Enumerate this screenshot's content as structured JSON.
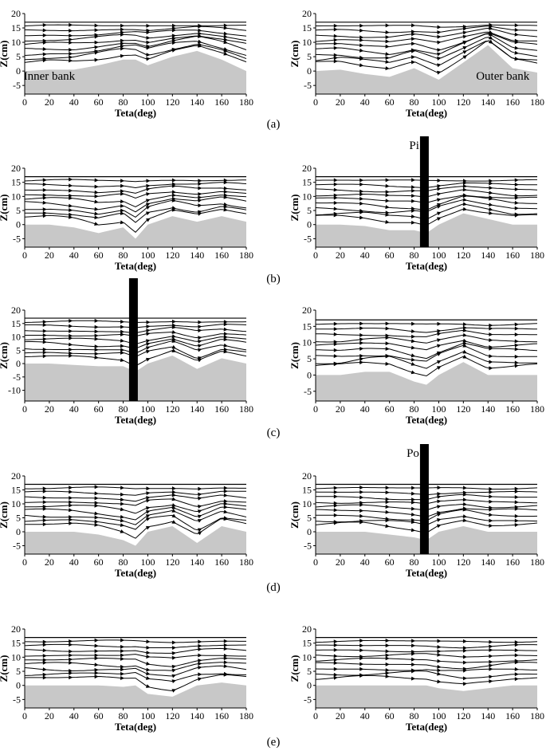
{
  "figure": {
    "panel_labels": [
      "(a)",
      "(b)",
      "(c)",
      "(d)",
      "(e)"
    ],
    "axis_color": "#000000",
    "bed_color": "#c8c8c8",
    "stream_color": "#000000"
  },
  "chart_data": [
    {
      "type": "streamline",
      "panel": "(a)",
      "side": "left",
      "xlabel": "Teta(deg)",
      "ylabel": "Z(cm)",
      "xlim": [
        0,
        180
      ],
      "ylim": [
        -8,
        20
      ],
      "xticks": [
        0,
        20,
        40,
        60,
        80,
        100,
        120,
        140,
        160,
        180
      ],
      "yticks": [
        -5,
        0,
        5,
        10,
        15,
        20
      ],
      "water_surface": 17,
      "annotations": [
        {
          "text": "Inner bank",
          "x": 20,
          "y": -3
        }
      ],
      "bed_profile": {
        "x": [
          0,
          20,
          40,
          60,
          80,
          90,
          100,
          120,
          140,
          160,
          180
        ],
        "z": [
          0,
          0.5,
          0.5,
          2,
          4,
          4,
          2,
          5,
          7,
          4,
          0
        ]
      }
    },
    {
      "type": "streamline",
      "panel": "(a)",
      "side": "right",
      "xlabel": "Teta(deg)",
      "ylabel": "Z(cm)",
      "xlim": [
        0,
        180
      ],
      "ylim": [
        -8,
        20
      ],
      "xticks": [
        0,
        20,
        40,
        60,
        80,
        100,
        120,
        140,
        160,
        180
      ],
      "yticks": [
        -5,
        0,
        5,
        10,
        15,
        20
      ],
      "water_surface": 17,
      "annotations": [
        {
          "text": "Outer bank",
          "x": 152,
          "y": -3
        }
      ],
      "bed_profile": {
        "x": [
          0,
          20,
          40,
          60,
          80,
          90,
          100,
          120,
          140,
          160,
          180
        ],
        "z": [
          0,
          0.5,
          -1,
          -2,
          1,
          -1,
          -3,
          3,
          9,
          1,
          -0.5
        ]
      }
    },
    {
      "type": "streamline",
      "panel": "(b)",
      "side": "left",
      "xlabel": "Teta(deg)",
      "ylabel": "Z(cm)",
      "xlim": [
        0,
        180
      ],
      "ylim": [
        -8,
        20
      ],
      "xticks": [
        0,
        20,
        40,
        60,
        80,
        100,
        120,
        140,
        160,
        180
      ],
      "yticks": [
        -5,
        0,
        5,
        10,
        15,
        20
      ],
      "water_surface": 17,
      "bed_profile": {
        "x": [
          0,
          20,
          40,
          60,
          80,
          90,
          100,
          120,
          140,
          160,
          180
        ],
        "z": [
          0,
          0,
          -1,
          -3,
          -1,
          -5,
          0,
          3,
          1,
          3,
          1
        ]
      }
    },
    {
      "type": "streamline",
      "panel": "(b)",
      "side": "right",
      "xlabel": "Teta(deg)",
      "ylabel": "Z(cm)",
      "xlim": [
        0,
        180
      ],
      "ylim": [
        -8,
        20
      ],
      "xticks": [
        0,
        20,
        40,
        60,
        80,
        100,
        120,
        140,
        160,
        180
      ],
      "yticks": [
        -5,
        0,
        5,
        10,
        15,
        20
      ],
      "water_surface": 17,
      "pier": {
        "x": 88,
        "width": 7,
        "label": "Pi"
      },
      "bed_profile": {
        "x": [
          0,
          20,
          40,
          60,
          80,
          90,
          100,
          120,
          140,
          160,
          180
        ],
        "z": [
          0,
          0,
          -0.5,
          -2,
          -2,
          -3,
          0,
          4,
          2,
          0,
          0
        ]
      }
    },
    {
      "type": "streamline",
      "panel": "(c)",
      "side": "left",
      "xlabel": "Teta(deg)",
      "ylabel": "Z(cm)",
      "xlim": [
        0,
        180
      ],
      "ylim": [
        -14,
        20
      ],
      "xticks": [
        0,
        20,
        40,
        60,
        80,
        100,
        120,
        140,
        160,
        180
      ],
      "yticks": [
        -10,
        -5,
        0,
        5,
        10,
        15,
        20
      ],
      "water_surface": 17,
      "pier": {
        "x": 88,
        "width": 7,
        "label": ""
      },
      "bed_profile": {
        "x": [
          0,
          20,
          40,
          60,
          80,
          90,
          100,
          120,
          140,
          160,
          180
        ],
        "z": [
          0,
          0,
          -0.5,
          -1,
          -1,
          -3,
          0,
          3,
          -2,
          2,
          0
        ]
      }
    },
    {
      "type": "streamline",
      "panel": "(c)",
      "side": "right",
      "xlabel": "Teta(deg)",
      "ylabel": "Z(cm)",
      "xlim": [
        0,
        180
      ],
      "ylim": [
        -8,
        20
      ],
      "xticks": [
        0,
        20,
        40,
        60,
        80,
        100,
        120,
        140,
        160,
        180
      ],
      "yticks": [
        -5,
        0,
        5,
        10,
        15,
        20
      ],
      "water_surface": 17,
      "bed_profile": {
        "x": [
          0,
          20,
          40,
          60,
          80,
          90,
          100,
          120,
          140,
          160,
          180
        ],
        "z": [
          0,
          0,
          1,
          1,
          -2,
          -3,
          0,
          4,
          0,
          0,
          0
        ]
      }
    },
    {
      "type": "streamline",
      "panel": "(d)",
      "side": "left",
      "xlabel": "Teta(deg)",
      "ylabel": "Z(cm)",
      "xlim": [
        0,
        180
      ],
      "ylim": [
        -8,
        20
      ],
      "xticks": [
        0,
        20,
        40,
        60,
        80,
        100,
        120,
        140,
        160,
        180
      ],
      "yticks": [
        -5,
        0,
        5,
        10,
        15,
        20
      ],
      "water_surface": 17,
      "bed_profile": {
        "x": [
          0,
          20,
          40,
          60,
          80,
          90,
          100,
          120,
          140,
          160,
          180
        ],
        "z": [
          0,
          0,
          0,
          -1,
          -3,
          -5,
          0,
          2,
          -4,
          2,
          0
        ]
      }
    },
    {
      "type": "streamline",
      "panel": "(d)",
      "side": "right",
      "xlabel": "Teta(deg)",
      "ylabel": "Z(cm)",
      "xlim": [
        0,
        180
      ],
      "ylim": [
        -8,
        20
      ],
      "xticks": [
        0,
        20,
        40,
        60,
        80,
        100,
        120,
        140,
        160,
        180
      ],
      "yticks": [
        -5,
        0,
        5,
        10,
        15,
        20
      ],
      "water_surface": 17,
      "pier": {
        "x": 88,
        "width": 7,
        "label": "Po"
      },
      "bed_profile": {
        "x": [
          0,
          20,
          40,
          60,
          80,
          90,
          100,
          120,
          140,
          160,
          180
        ],
        "z": [
          0,
          0,
          0,
          -1,
          -2,
          -3,
          0,
          2,
          0,
          0,
          0
        ]
      }
    },
    {
      "type": "streamline",
      "panel": "(e)",
      "side": "left",
      "xlabel": "Teta(deg)",
      "ylabel": "Z(cm)",
      "xlim": [
        0,
        180
      ],
      "ylim": [
        -8,
        20
      ],
      "xticks": [
        0,
        20,
        40,
        60,
        80,
        100,
        120,
        140,
        160,
        180
      ],
      "yticks": [
        -5,
        0,
        5,
        10,
        15,
        20
      ],
      "water_surface": 17,
      "bed_profile": {
        "x": [
          0,
          20,
          40,
          60,
          80,
          90,
          100,
          120,
          140,
          160,
          180
        ],
        "z": [
          0,
          0,
          0,
          0,
          -0.5,
          0,
          -3,
          -4,
          0,
          1,
          0
        ]
      }
    },
    {
      "type": "streamline",
      "panel": "(e)",
      "side": "right",
      "xlabel": "Teta(deg)",
      "ylabel": "Z(cm)",
      "xlim": [
        0,
        180
      ],
      "ylim": [
        -8,
        20
      ],
      "xticks": [
        0,
        20,
        40,
        60,
        80,
        100,
        120,
        140,
        160,
        180
      ],
      "yticks": [
        -5,
        0,
        5,
        10,
        15,
        20
      ],
      "water_surface": 17,
      "bed_profile": {
        "x": [
          0,
          20,
          40,
          60,
          80,
          90,
          100,
          120,
          140,
          160,
          180
        ],
        "z": [
          0,
          0,
          0,
          0,
          0,
          0,
          -1,
          -2,
          -1,
          0,
          0
        ]
      }
    }
  ]
}
